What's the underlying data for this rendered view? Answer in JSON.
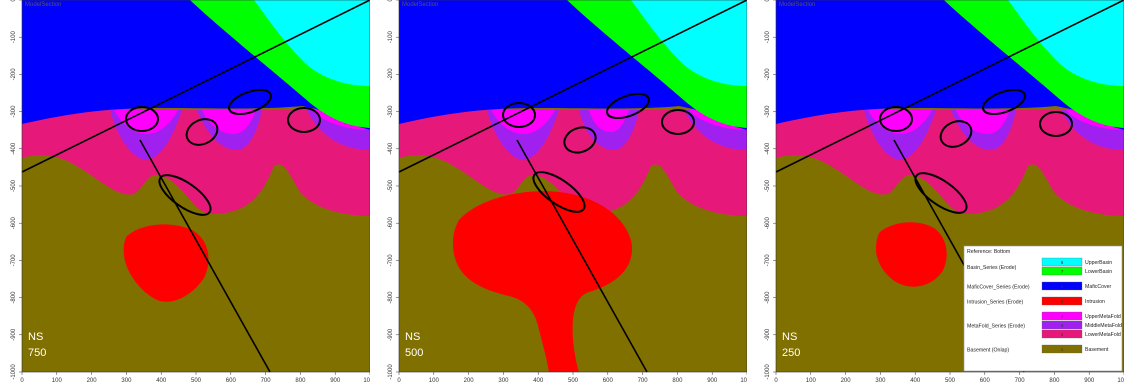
{
  "section_title": "ModelSection",
  "x_ticks": [
    "0",
    "100",
    "200",
    "300",
    "400",
    "500",
    "600",
    "700",
    "800",
    "900",
    "1000"
  ],
  "y_ticks": [
    "0",
    "-100",
    "-200",
    "-300",
    "-400",
    "-500",
    "-600",
    "-700",
    "-800",
    "-900",
    "-1000"
  ],
  "panels": [
    {
      "prefix": "NS",
      "value": "750"
    },
    {
      "prefix": "NS",
      "value": "500"
    },
    {
      "prefix": "NS",
      "value": "250"
    }
  ],
  "legend": {
    "title": "Reference: Bottom",
    "groups": [
      {
        "series": "Basin_Series (Erode)",
        "units": [
          {
            "num": "8",
            "name": "UpperBasin",
            "color": "#00ffff"
          },
          {
            "num": "7",
            "name": "LowerBasin",
            "color": "#00ff00"
          }
        ]
      },
      {
        "series": "MaficCover_Series (Erode)",
        "units": [
          {
            "num": "6",
            "name": "MaficCover",
            "color": "#0000ff"
          }
        ]
      },
      {
        "series": "Intrusion_Series (Erode)",
        "units": [
          {
            "num": "5",
            "name": "Intrusion",
            "color": "#ff0000"
          }
        ]
      },
      {
        "series": "MetaFold_Series (Erode)",
        "units": [
          {
            "num": "4",
            "name": "UpperMetaFold",
            "color": "#ff00ff"
          },
          {
            "num": "3",
            "name": "MiddleMetaFold",
            "color": "#a020f0"
          },
          {
            "num": "2",
            "name": "LowerMetaFold",
            "color": "#e6197a"
          }
        ]
      },
      {
        "series": "Basement (Onlap)",
        "units": [
          {
            "num": "1",
            "name": "Basement",
            "color": "#807000"
          }
        ]
      }
    ]
  },
  "colors": {
    "upper_basin": "#00ffff",
    "lower_basin": "#00ff00",
    "mafic_cover": "#0000ff",
    "intrusion": "#ff0000",
    "upper_metafold": "#ff00ff",
    "middle_metafold": "#a020f0",
    "lower_metafold": "#e6197a",
    "basement": "#807000"
  }
}
